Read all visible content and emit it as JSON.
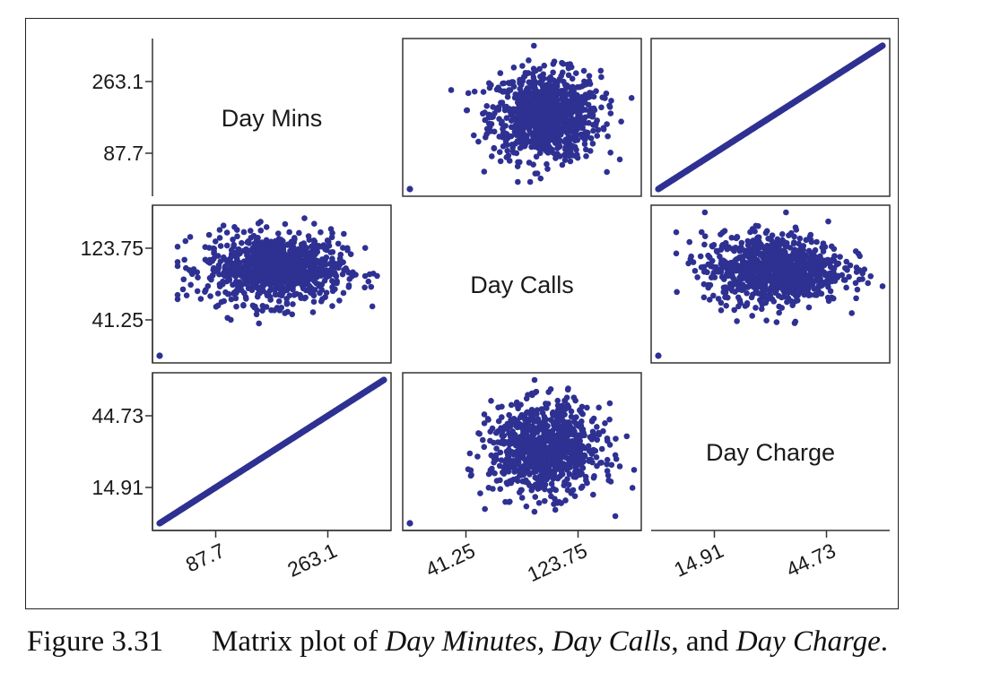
{
  "chart_data": {
    "type": "scatter",
    "subtype": "scatter-matrix",
    "variables": [
      "Day Mins",
      "Day Calls",
      "Day Charge"
    ],
    "point_color": "#2e3192",
    "axes": {
      "Day Mins": {
        "ticks": [
          87.7,
          263.1
        ],
        "tick_labels": [
          "87.7",
          "263.1"
        ],
        "range": [
          0,
          350.8
        ]
      },
      "Day Calls": {
        "ticks": [
          41.25,
          123.75
        ],
        "tick_labels": [
          "41.25",
          "123.75"
        ],
        "range": [
          0,
          165
        ]
      },
      "Day Charge": {
        "ticks": [
          14.91,
          44.73
        ],
        "tick_labels": [
          "14.91",
          "44.73"
        ],
        "range": [
          0,
          59.64
        ]
      }
    },
    "relationships": [
      {
        "x": "Day Calls",
        "y": "Day Mins",
        "pattern": "cloud",
        "center": [
          100,
          180
        ],
        "spread": [
          20,
          54
        ],
        "outlier": [
          0,
          0
        ]
      },
      {
        "x": "Day Charge",
        "y": "Day Mins",
        "pattern": "linear",
        "slope": 5.882,
        "x_range": [
          0,
          59.64
        ]
      },
      {
        "x": "Day Mins",
        "y": "Day Calls",
        "pattern": "cloud",
        "center": [
          180,
          100
        ],
        "spread": [
          54,
          20
        ],
        "outlier": [
          0,
          0
        ]
      },
      {
        "x": "Day Charge",
        "y": "Day Calls",
        "pattern": "cloud",
        "center": [
          30.6,
          100
        ],
        "spread": [
          9.2,
          20
        ],
        "outlier": [
          0,
          0
        ]
      },
      {
        "x": "Day Mins",
        "y": "Day Charge",
        "pattern": "linear",
        "slope": 0.17,
        "x_range": [
          0,
          350.8
        ]
      },
      {
        "x": "Day Calls",
        "y": "Day Charge",
        "pattern": "cloud",
        "center": [
          100,
          30.6
        ],
        "spread": [
          20,
          9.2
        ],
        "outlier": [
          0,
          0
        ]
      }
    ]
  },
  "caption": {
    "number": "Figure 3.31",
    "prefix": "Matrix plot of ",
    "var1": "Day Minutes",
    "sep1": ", ",
    "var2": "Day Calls",
    "sep2": ", and ",
    "var3": "Day Charge",
    "suffix": "."
  }
}
